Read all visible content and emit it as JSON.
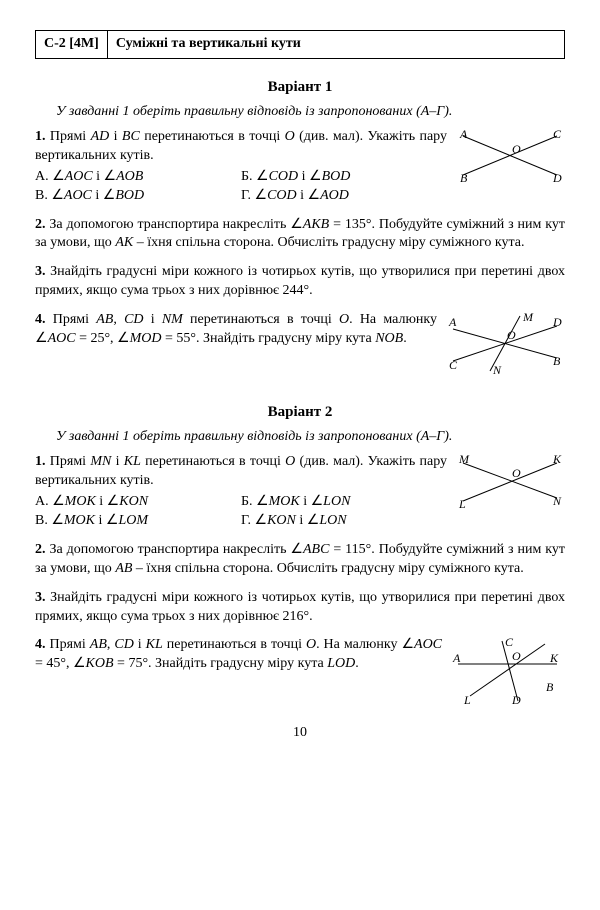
{
  "header": {
    "code": "С-2 [4М]",
    "title": "Суміжні та вертикальні кути"
  },
  "variant1": {
    "title": "Варіант 1",
    "instruction": "У завданні 1 оберіть правильну відповідь із запропонованих (А–Г).",
    "p1": {
      "num": "1.",
      "text": "Прямі <i>AD</i> і <i>BC</i> перетинаються в точці <i>O</i> (див. мал). Укажіть пару вертикальних кутів.",
      "optA": "А. ∠<i>AOC</i> і ∠<i>AOB</i>",
      "optB": "Б. ∠<i>COD</i> і ∠<i>BOD</i>",
      "optV": "В. ∠<i>AOC</i> і ∠<i>BOD</i>",
      "optG": "Г. ∠<i>COD</i> і ∠<i>AOD</i>",
      "fig": {
        "A": "A",
        "B": "B",
        "C": "C",
        "D": "D",
        "O": "O"
      }
    },
    "p2": {
      "num": "2.",
      "text": "За допомогою транспортира накресліть ∠<i>AKB</i> = 135°. Побудуйте суміжний з ним кут за умови, що <i>AK</i> – їхня спільна сторона. Обчисліть градусну міру суміжного кута."
    },
    "p3": {
      "num": "3.",
      "text": "Знайдіть градусні міри кожного із чотирьох кутів, що утворилися при перетині двох прямих, якщо сума трьох з них дорівнює 244°."
    },
    "p4": {
      "num": "4.",
      "text": "Прямі <i>AB</i>, <i>CD</i> і <i>NM</i> перетинаються в точці <i>O</i>. На малюнку ∠<i>AOC</i> = 25°, ∠<i>MOD</i> = 55°. Знайдіть градусну міру кута <i>NOB</i>.",
      "fig": {
        "A": "A",
        "B": "B",
        "C": "C",
        "D": "D",
        "M": "M",
        "N": "N",
        "O": "O"
      }
    }
  },
  "variant2": {
    "title": "Варіант 2",
    "instruction": "У завданні 1 оберіть правильну відповідь із запропонованих (А–Г).",
    "p1": {
      "num": "1.",
      "text": "Прямі <i>MN</i> і <i>KL</i> перетинаються в точці <i>O</i> (див. мал). Укажіть пару вертикальних кутів.",
      "optA": "А. ∠<i>MOK</i> і ∠<i>KON</i>",
      "optB": "Б. ∠<i>MOK</i> і ∠<i>LON</i>",
      "optV": "В. ∠<i>MOK</i> і ∠<i>LOM</i>",
      "optG": "Г. ∠<i>KON</i> і ∠<i>LON</i>",
      "fig": {
        "M": "M",
        "K": "K",
        "L": "L",
        "N": "N",
        "O": "O"
      }
    },
    "p2": {
      "num": "2.",
      "text": "За допомогою транспортира накресліть ∠<i>ABC</i> = 115°. Побудуйте суміжний з ним кут за умови, що <i>AB</i> – їхня спільна сторона. Обчисліть градусну міру суміжного кута."
    },
    "p3": {
      "num": "3.",
      "text": "Знайдіть градусні міри кожного із чотирьох кутів, що утворилися при перетині двох прямих, якщо сума трьох з них дорівнює 216°."
    },
    "p4": {
      "num": "4.",
      "text": "Прямі <i>AB</i>, <i>CD</i> і <i>KL</i> перетинаються в точці <i>O</i>. На малюнку ∠<i>AOC</i> = 45°, ∠<i>KOB</i> = 75°. Знайдіть градусну міру кута <i>LOD</i>.",
      "fig": {
        "A": "A",
        "B": "B",
        "C": "C",
        "D": "D",
        "K": "K",
        "L": "L",
        "O": "O"
      }
    }
  },
  "page_number": "10"
}
